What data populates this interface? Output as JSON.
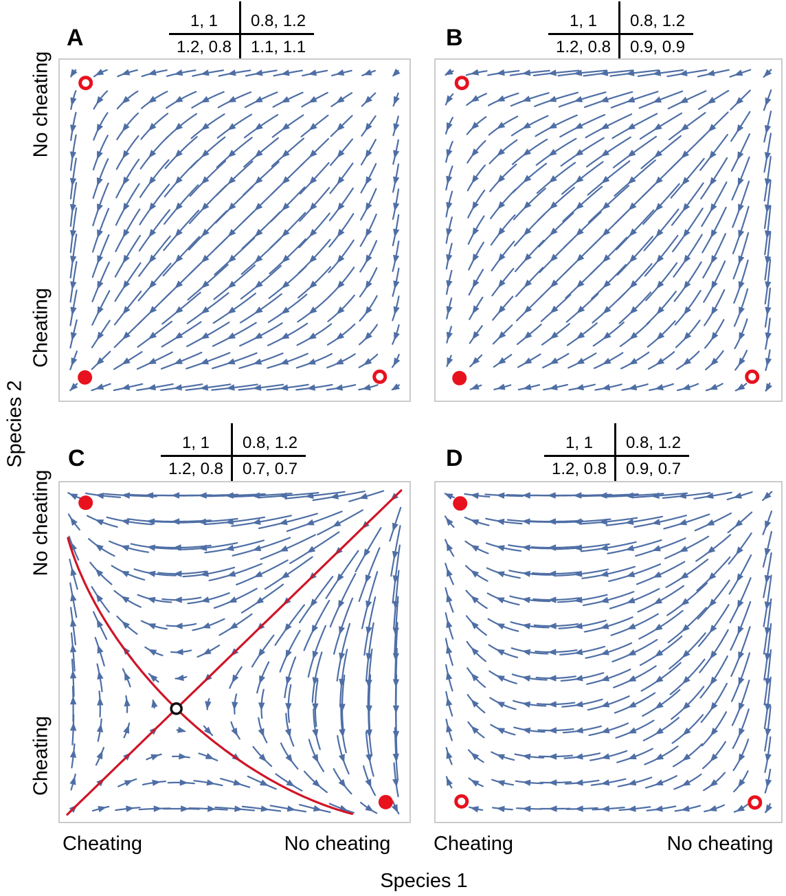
{
  "axis": {
    "x_title": "Species 1",
    "y_title": "Species 2",
    "tick_cheating": "Cheating",
    "tick_no_cheating": "No cheating"
  },
  "colors": {
    "stream": "#4e6ea5",
    "separatrix": "#cf1527",
    "equilibrium_red": "#e8111e",
    "saddle_black": "#111111",
    "frame": "#cbcbcb"
  },
  "chart_data": {
    "type": "streamplot",
    "layout": "2x2 panels of phase portraits on the unit square",
    "dynamics": "two-population replicator dynamics; x = P(Species 1 plays No cheating), y = P(Species 2 plays No cheating)",
    "strategies": [
      "No cheating",
      "Cheating"
    ],
    "xlabel": "Species 1",
    "ylabel": "Species 2",
    "x_ticks": [
      "Cheating",
      "No cheating"
    ],
    "y_ticks": [
      "Cheating",
      "No cheating"
    ],
    "x_range": [
      0,
      1
    ],
    "y_range": [
      0,
      1
    ],
    "panels": [
      {
        "label": "A",
        "payoff_cells": [
          "1, 1",
          "0.8, 1.2",
          "1.2, 0.8",
          "1.1, 1.1"
        ],
        "species1_payoffs": [
          [
            1,
            0.8
          ],
          [
            1.2,
            1.1
          ]
        ],
        "species2_payoffs": [
          [
            1,
            1.2
          ],
          [
            0.8,
            1.1
          ]
        ],
        "equilibria": [
          {
            "x": 0.074,
            "y": 0.932,
            "marker": "unstable",
            "desc": "S1 Cheating / S2 No cheating"
          },
          {
            "x": 0.072,
            "y": 0.068,
            "marker": "stable",
            "desc": "Both Cheating"
          },
          {
            "x": 0.915,
            "y": 0.07,
            "marker": "unstable",
            "desc": "S1 No cheating / S2 Cheating"
          }
        ],
        "separatrix": null
      },
      {
        "label": "B",
        "payoff_cells": [
          "1, 1",
          "0.8, 1.2",
          "1.2, 0.8",
          "0.9, 0.9"
        ],
        "species1_payoffs": [
          [
            1,
            0.8
          ],
          [
            1.2,
            0.9
          ]
        ],
        "species2_payoffs": [
          [
            1,
            1.2
          ],
          [
            0.8,
            0.9
          ]
        ],
        "equilibria": [
          {
            "x": 0.076,
            "y": 0.932,
            "marker": "unstable",
            "desc": "S1 Cheating / S2 No cheating"
          },
          {
            "x": 0.069,
            "y": 0.066,
            "marker": "stable",
            "desc": "Both Cheating"
          },
          {
            "x": 0.916,
            "y": 0.07,
            "marker": "unstable",
            "desc": "S1 No cheating / S2 Cheating"
          }
        ],
        "separatrix": null
      },
      {
        "label": "C",
        "payoff_cells": [
          "1, 1",
          "0.8, 1.2",
          "1.2, 0.8",
          "0.7, 0.7"
        ],
        "species1_payoffs": [
          [
            1,
            0.8
          ],
          [
            1.2,
            0.7
          ]
        ],
        "species2_payoffs": [
          [
            1,
            1.2
          ],
          [
            0.8,
            0.7
          ]
        ],
        "equilibria": [
          {
            "x": 0.074,
            "y": 0.94,
            "marker": "stable",
            "desc": "S1 Cheating / S2 No cheating"
          },
          {
            "x": 0.932,
            "y": 0.058,
            "marker": "stable",
            "desc": "S1 No cheating / S2 Cheating"
          },
          {
            "x": 0.3333,
            "y": 0.3333,
            "marker": "saddle",
            "desc": "Interior saddle at (1/3, 1/3)"
          }
        ],
        "separatrix": {
          "saddle": {
            "x": 0.3333,
            "y": 0.3333
          }
        }
      },
      {
        "label": "D",
        "payoff_cells": [
          "1, 1",
          "0.8, 1.2",
          "1.2, 0.8",
          "0.9, 0.7"
        ],
        "species1_payoffs": [
          [
            1,
            0.8
          ],
          [
            1.2,
            0.9
          ]
        ],
        "species2_payoffs": [
          [
            1,
            1.2
          ],
          [
            0.8,
            0.7
          ]
        ],
        "equilibria": [
          {
            "x": 0.071,
            "y": 0.938,
            "marker": "stable",
            "desc": "S1 Cheating / S2 No cheating"
          },
          {
            "x": 0.075,
            "y": 0.06,
            "marker": "unstable",
            "desc": "Both Cheating"
          },
          {
            "x": 0.924,
            "y": 0.057,
            "marker": "unstable",
            "desc": "S1 No cheating / S2 Cheating"
          }
        ],
        "separatrix": null
      }
    ]
  }
}
